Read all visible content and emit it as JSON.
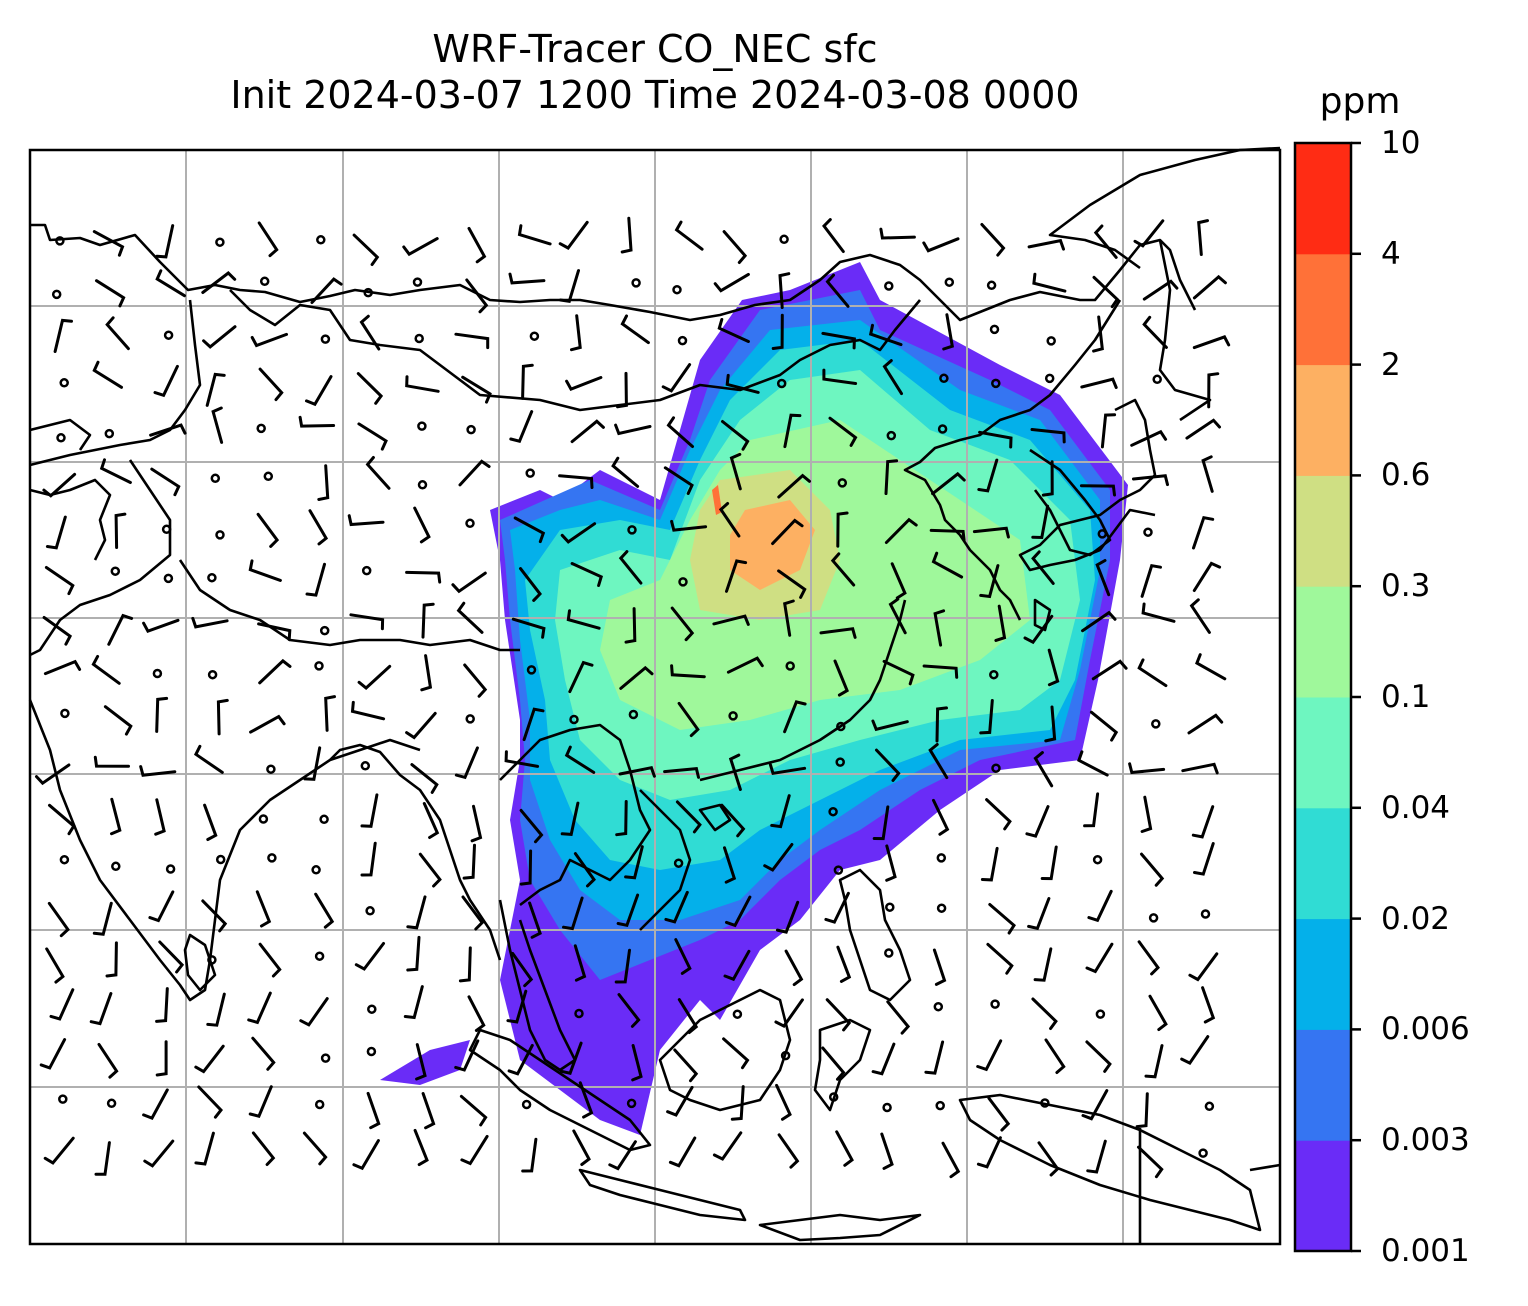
{
  "title": {
    "line1": "WRF-Tracer CO_NEC sfc",
    "line2": "Init 2024-03-07 1200 Time 2024-03-08 0000"
  },
  "colorbar": {
    "unit": "ppm",
    "levels": [
      "0.001",
      "0.003",
      "0.006",
      "0.02",
      "0.04",
      "0.1",
      "0.3",
      "0.6",
      "2",
      "4",
      "10"
    ],
    "colors": [
      "#6a2cf7",
      "#3575f2",
      "#04b0ea",
      "#30dcd4",
      "#6ef6c0",
      "#9ff89b",
      "#cfdf83",
      "#fdb062",
      "#ff7138",
      "#ff2c14"
    ]
  },
  "map": {
    "gridlines": true,
    "gridline_color": "#b0b0b0",
    "coastline_color": "#000000",
    "wind_barbs": true
  }
}
